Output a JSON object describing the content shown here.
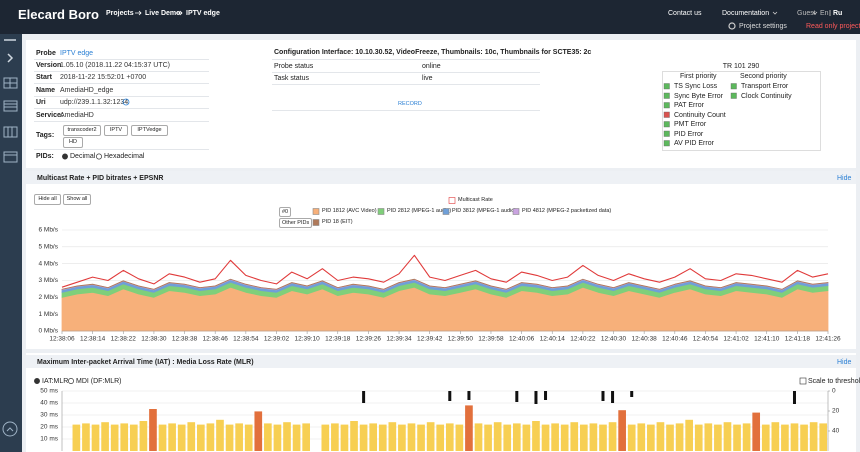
{
  "header": {
    "brand": "Elecard Boro",
    "breadcrumbs": [
      "Projects",
      "Live Demo",
      "IPTV edge"
    ],
    "links": [
      "Contact us",
      "Documentation",
      "Guest",
      "En",
      "Ru"
    ],
    "project_settings": "Project settings",
    "read_only": "Read only project"
  },
  "probe": {
    "rows": [
      [
        "Probe",
        "IPTV edge"
      ],
      [
        "Version",
        "1.05.10 (2018.11.22 04:15:37 UTC)"
      ],
      [
        "Start",
        "2018-11-22 15:52:01 +0700"
      ],
      [
        "Name",
        "AmediaHD_edge"
      ],
      [
        "Uri",
        "udp://239.1.1.32:1234"
      ],
      [
        "Service:",
        "AmediaHD"
      ]
    ],
    "tags_label": "Tags:",
    "tags": [
      "transcoder2",
      "IPTV",
      "IPTVedge",
      "HD"
    ],
    "pids_label": "PIDs:",
    "pid_modes": [
      "Decimal",
      "Hexadecimal"
    ]
  },
  "config": {
    "configuration": "Configuration Interface: 10.10.30.52, VideoFreeze, Thumbnails: 10c, Thumbnails for SCTE35: 2c",
    "rows": [
      [
        "Probe status",
        "online"
      ],
      [
        "Task status",
        "live"
      ]
    ],
    "record": "RECORD"
  },
  "tr101290": {
    "title": "TR 101 290",
    "first_priority": {
      "title": "First priority",
      "items": [
        "TS Sync Loss",
        "Sync Byte Error",
        "PAT Error",
        "Continuity Count",
        "PMT Error",
        "PID Error",
        "AV PID Error"
      ],
      "colors": [
        "#5cb85c",
        "#5cb85c",
        "#5cb85c",
        "#d9534f",
        "#5cb85c",
        "#5cb85c",
        "#5cb85c"
      ]
    },
    "second_priority": {
      "title": "Second priority",
      "items": [
        "Transport Error",
        "Clock Continuity"
      ],
      "colors": [
        "#5cb85c",
        "#5cb85c"
      ]
    }
  },
  "chart_data": [
    {
      "type": "area",
      "stacked": true,
      "title": "Multicast Rate + PID bitrates + EPSNR",
      "hide": "Hide",
      "buttons": [
        "Hide all",
        "Show all"
      ],
      "legend_extra": [
        "#0",
        "Other PIDs"
      ],
      "grid": true,
      "categories": [
        "12:38:06",
        null,
        "12:38:14",
        null,
        "12:38:22",
        null,
        "12:38:30",
        null,
        "12:38:38",
        null,
        "12:38:46",
        null,
        "12:38:54",
        null,
        "12:39:02",
        null,
        "12:39:10",
        null,
        "12:39:18",
        null,
        "12:39:26",
        null,
        "12:39:34",
        null,
        "12:39:42",
        null,
        "12:39:50",
        null,
        "12:39:58",
        null,
        "12:40:06",
        null,
        "12:40:14",
        null,
        "12:40:22",
        null,
        "12:40:30",
        null,
        "12:40:38",
        null,
        "12:40:46",
        null,
        "12:40:54",
        null,
        "12:41:02",
        null,
        "12:41:10",
        null,
        "12:41:18",
        null,
        "12:41:26"
      ],
      "ylim": [
        0,
        6
      ],
      "yticks": [
        {
          "value": 0,
          "label": "0 Mb/s"
        },
        {
          "value": 1,
          "label": "1 Mb/s"
        },
        {
          "value": 2,
          "label": "2 Mb/s"
        },
        {
          "value": 3,
          "label": "3 Mb/s"
        },
        {
          "value": 4,
          "label": "4 Mb/s"
        },
        {
          "value": 5,
          "label": "5 Mb/s"
        },
        {
          "value": 6,
          "label": "6 Mb/s"
        }
      ],
      "series": [
        {
          "name": "Multicast Rate",
          "type": "line",
          "color": "#e03a3a",
          "values": [
            2.6,
            2.9,
            3.2,
            3.0,
            3.6,
            3.1,
            2.8,
            3.4,
            3.2,
            2.9,
            3.1,
            4.2,
            3.3,
            3.0,
            2.8,
            3.5,
            3.1,
            3.7,
            3.0,
            3.2,
            3.1,
            2.9,
            3.4,
            4.5,
            3.2,
            3.0,
            3.3,
            3.6,
            3.1,
            2.9,
            3.5,
            3.3,
            3.0,
            3.2,
            3.9,
            3.3,
            3.0,
            3.4,
            3.1,
            2.9,
            3.2,
            3.7,
            3.1,
            3.0,
            3.4,
            3.3,
            3.1,
            2.9,
            3.6,
            3.2,
            3.4
          ]
        },
        {
          "name": "PID 1812 (AVC Video)",
          "color": "#f7b07a",
          "values": [
            2.0,
            2.2,
            2.3,
            2.1,
            2.5,
            2.2,
            2.0,
            2.4,
            2.3,
            2.1,
            2.2,
            2.6,
            2.3,
            2.1,
            2.0,
            2.4,
            2.2,
            2.5,
            2.1,
            2.3,
            2.2,
            2.0,
            2.4,
            2.6,
            2.2,
            2.1,
            2.3,
            2.5,
            2.2,
            2.0,
            2.4,
            2.3,
            2.1,
            2.2,
            2.6,
            2.3,
            2.1,
            2.4,
            2.2,
            2.0,
            2.3,
            2.5,
            2.2,
            2.1,
            2.4,
            2.3,
            2.2,
            2.0,
            2.5,
            2.3,
            2.4
          ]
        },
        {
          "name": "PID 2812 (MPEG-1 audio)",
          "color": "#7fcf7a",
          "values": [
            0.3,
            0.3,
            0.3,
            0.3,
            0.3,
            0.3,
            0.3,
            0.3,
            0.3,
            0.3,
            0.3,
            0.3,
            0.3,
            0.3,
            0.3,
            0.3,
            0.3,
            0.3,
            0.3,
            0.3,
            0.3,
            0.3,
            0.3,
            0.3,
            0.3,
            0.3,
            0.3,
            0.3,
            0.3,
            0.3,
            0.3,
            0.3,
            0.3,
            0.3,
            0.3,
            0.3,
            0.3,
            0.3,
            0.3,
            0.3,
            0.3,
            0.3,
            0.3,
            0.3,
            0.3,
            0.3,
            0.3,
            0.3,
            0.3,
            0.3,
            0.3
          ]
        },
        {
          "name": "PID 3812 (MPEG-1 audio)",
          "color": "#6f9fd8",
          "values": [
            0.15,
            0.15,
            0.15,
            0.15,
            0.15,
            0.15,
            0.15,
            0.15,
            0.15,
            0.15,
            0.15,
            0.15,
            0.15,
            0.15,
            0.15,
            0.15,
            0.15,
            0.15,
            0.15,
            0.15,
            0.15,
            0.15,
            0.15,
            0.15,
            0.15,
            0.15,
            0.15,
            0.15,
            0.15,
            0.15,
            0.15,
            0.15,
            0.15,
            0.15,
            0.15,
            0.15,
            0.15,
            0.15,
            0.15,
            0.15,
            0.15,
            0.15,
            0.15,
            0.15,
            0.15,
            0.15,
            0.15,
            0.15,
            0.15,
            0.15,
            0.15
          ]
        },
        {
          "name": "PID 4812 (MPEG-2 packetized data)",
          "color": "#c9a3e0",
          "values": [
            0.02,
            0.02,
            0.02,
            0.02,
            0.02,
            0.02,
            0.02,
            0.02,
            0.02,
            0.02,
            0.02,
            0.02,
            0.02,
            0.02,
            0.02,
            0.02,
            0.02,
            0.02,
            0.02,
            0.02,
            0.02,
            0.02,
            0.02,
            0.02,
            0.02,
            0.02,
            0.02,
            0.02,
            0.02,
            0.02,
            0.02,
            0.02,
            0.02,
            0.02,
            0.02,
            0.02,
            0.02,
            0.02,
            0.02,
            0.02,
            0.02,
            0.02,
            0.02,
            0.02,
            0.02,
            0.02,
            0.02,
            0.02,
            0.02,
            0.02,
            0.02
          ]
        },
        {
          "name": "PID 18 (EIT)",
          "color": "#b07a5a",
          "values": [
            0.01,
            0.01,
            0.01,
            0.01,
            0.01,
            0.01,
            0.01,
            0.01,
            0.01,
            0.01,
            0.01,
            0.01,
            0.01,
            0.01,
            0.01,
            0.01,
            0.01,
            0.01,
            0.01,
            0.01,
            0.01,
            0.01,
            0.01,
            0.01,
            0.01,
            0.01,
            0.01,
            0.01,
            0.01,
            0.01,
            0.01,
            0.01,
            0.01,
            0.01,
            0.01,
            0.01,
            0.01,
            0.01,
            0.01,
            0.01,
            0.01,
            0.01,
            0.01,
            0.01,
            0.01,
            0.01,
            0.01,
            0.01,
            0.01,
            0.01,
            0.01
          ]
        }
      ]
    },
    {
      "type": "bar",
      "title": "Maximum Inter-packet Arrival Time (IAT) : Media Loss Rate (MLR)",
      "hide": "Hide",
      "modes": [
        "IAT:MLR",
        "MDI (DF:MLR)"
      ],
      "scale_label": "Scale to thresholds",
      "grid": true,
      "ylim": [
        0,
        50
      ],
      "yticks": [
        {
          "value": 10,
          "label": "10 ms"
        },
        {
          "value": 20,
          "label": "20 ms"
        },
        {
          "value": 30,
          "label": "30 ms"
        },
        {
          "value": 40,
          "label": "40 ms"
        },
        {
          "value": 50,
          "label": "50 ms"
        }
      ],
      "y2lim": [
        0,
        60
      ],
      "y2_inverted": true,
      "y2ticks": [
        0,
        20,
        40
      ],
      "series": [
        {
          "color": "#f7cf52",
          "values": [
            null,
            22,
            23,
            22,
            24,
            22,
            23,
            22,
            25,
            null,
            22,
            23,
            22,
            24,
            22,
            23,
            26,
            22,
            23,
            22,
            null,
            23,
            22,
            24,
            22,
            23,
            null,
            22,
            23,
            22,
            25,
            22,
            23,
            22,
            24,
            22,
            23,
            22,
            24,
            22,
            23,
            22,
            null,
            23,
            22,
            24,
            22,
            23,
            22,
            25,
            22,
            23,
            22,
            24,
            22,
            23,
            22,
            24,
            null,
            22,
            23,
            22,
            24,
            22,
            23,
            26,
            22,
            23,
            22,
            24,
            22,
            23,
            null,
            22,
            24,
            22,
            23,
            22,
            24,
            23
          ]
        },
        {
          "color": "#e2703c",
          "values": [
            null,
            null,
            null,
            null,
            null,
            null,
            null,
            null,
            null,
            35,
            null,
            null,
            null,
            null,
            null,
            null,
            null,
            null,
            null,
            null,
            33,
            null,
            null,
            null,
            null,
            null,
            null,
            null,
            null,
            null,
            null,
            null,
            null,
            null,
            null,
            null,
            null,
            null,
            null,
            null,
            null,
            null,
            38,
            null,
            null,
            null,
            null,
            null,
            null,
            null,
            null,
            null,
            null,
            null,
            null,
            null,
            null,
            null,
            34,
            null,
            null,
            null,
            null,
            null,
            null,
            null,
            null,
            null,
            null,
            null,
            null,
            null,
            32,
            null,
            null,
            null,
            null,
            null,
            null,
            null
          ]
        },
        {
          "color": "#111111",
          "axis": "y2",
          "values": [
            null,
            null,
            null,
            null,
            null,
            null,
            null,
            null,
            null,
            null,
            null,
            null,
            null,
            null,
            null,
            null,
            null,
            null,
            null,
            null,
            null,
            null,
            null,
            null,
            null,
            null,
            null,
            null,
            null,
            null,
            null,
            12,
            null,
            null,
            null,
            null,
            null,
            null,
            null,
            null,
            10,
            null,
            9,
            null,
            null,
            null,
            null,
            11,
            null,
            13,
            9,
            null,
            null,
            null,
            null,
            null,
            10,
            12,
            null,
            6,
            null,
            null,
            null,
            null,
            null,
            null,
            null,
            null,
            null,
            null,
            null,
            null,
            null,
            null,
            null,
            null,
            13,
            null,
            null,
            null
          ]
        }
      ]
    }
  ]
}
